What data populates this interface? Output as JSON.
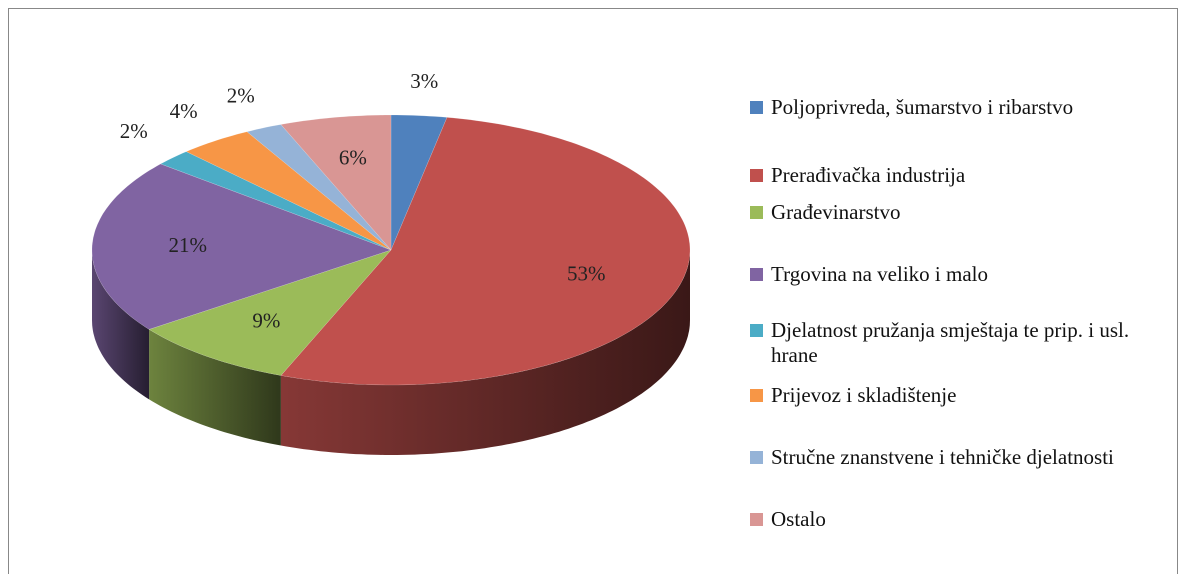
{
  "chart_data": {
    "type": "pie",
    "categories": [
      "Poljoprivreda, šumarstvo i ribarstvo",
      "Prerađivačka industrija",
      "Građevinarstvo",
      "Trgovina na veliko i malo",
      "Djelatnost pružanja smještaja te prip. i usl. hrane",
      "Prijevoz i skladištenje",
      "Stručne znanstvene i tehničke djelatnosti",
      "Ostalo"
    ],
    "values": [
      3,
      53,
      9,
      21,
      2,
      4,
      2,
      6
    ],
    "value_labels": [
      "3%",
      "53%",
      "9%",
      "21%",
      "2%",
      "4%",
      "2%",
      "6%"
    ],
    "colors": [
      "#4f81bd",
      "#c0504d",
      "#9bbb59",
      "#8064a2",
      "#4bacc6",
      "#f79646",
      "#95b3d7",
      "#d99694"
    ],
    "legend": "right"
  }
}
